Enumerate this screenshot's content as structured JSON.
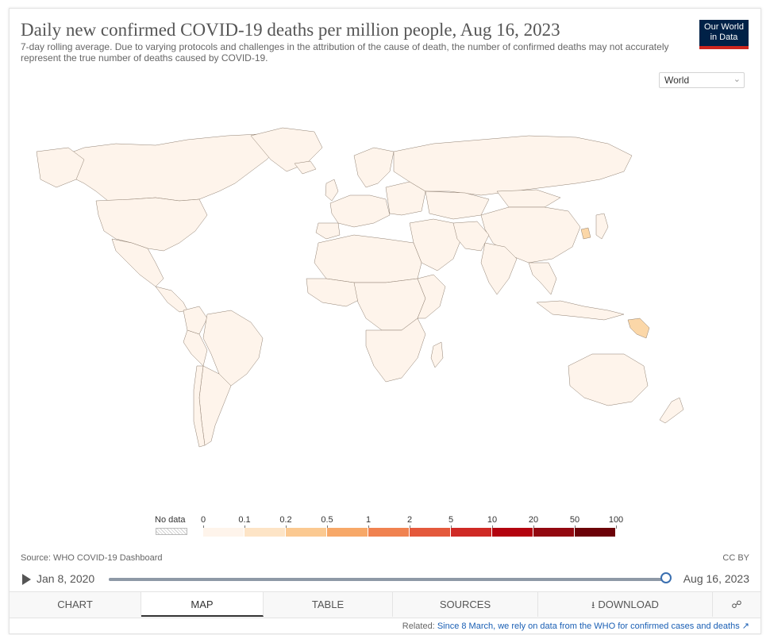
{
  "header": {
    "title": "Daily new confirmed COVID-19 deaths per million people, Aug 16, 2023",
    "subtitle": "7-day rolling average. Due to varying protocols and challenges in the attribution of the cause of death, the number of confirmed deaths may not accurately represent the true number of deaths caused by COVID-19.",
    "logo_line1": "Our World",
    "logo_line2": "in Data"
  },
  "region": {
    "selected": "World"
  },
  "legend": {
    "no_data_label": "No data",
    "ticks": [
      "0",
      "0.1",
      "0.2",
      "0.5",
      "1",
      "2",
      "5",
      "10",
      "20",
      "50",
      "100"
    ],
    "colors": [
      "#fef4eb",
      "#fde4c6",
      "#fbc991",
      "#f7a868",
      "#f08250",
      "#e4593c",
      "#cf2a25",
      "#b3030f",
      "#930810",
      "#6c0208"
    ]
  },
  "map_data": {
    "highlighted_regions": [
      {
        "name": "South Korea",
        "bin": "0.1-0.2"
      },
      {
        "name": "Papua New Guinea",
        "bin": "0.1-0.2"
      }
    ],
    "default_bin": "0-0.1"
  },
  "footer": {
    "source": "Source: WHO COVID-19 Dashboard",
    "license": "CC BY"
  },
  "timeline": {
    "start": "Jan 8, 2020",
    "end": "Aug 16, 2023",
    "position": 1.0
  },
  "tabs": {
    "chart": "CHART",
    "map": "MAP",
    "table": "TABLE",
    "sources": "SOURCES",
    "download": "DOWNLOAD"
  },
  "related": {
    "prefix": "Related:",
    "link": "Since 8 March, we rely on data from the WHO for confirmed cases and deaths"
  }
}
